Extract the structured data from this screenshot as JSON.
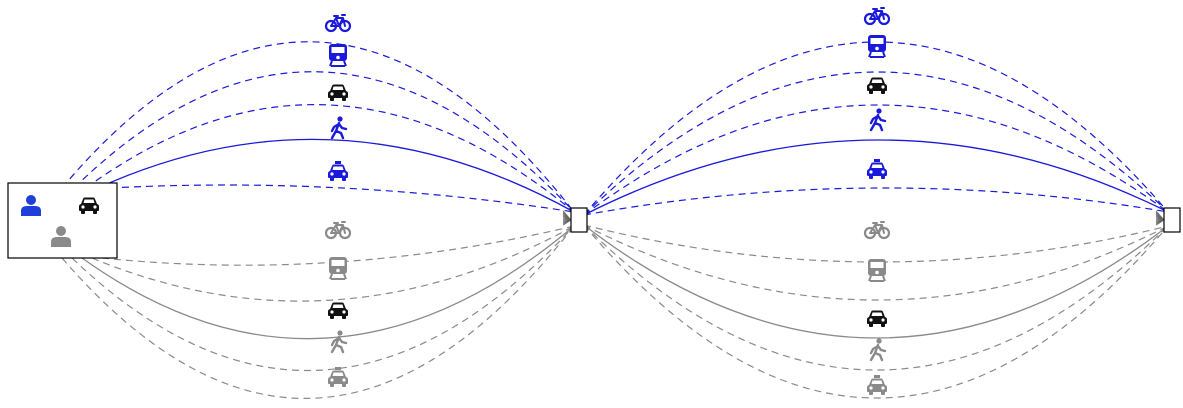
{
  "colors": {
    "blue": "#1a1adb",
    "gray": "#8a8a8a",
    "black": "#111111",
    "person_blue": "#1f3fd8",
    "person_gray": "#8a8a8a",
    "box_border": "#000000"
  },
  "diagram": {
    "origin": {
      "icons": [
        "person-icon",
        "car-icon",
        "person-icon"
      ]
    },
    "stops": [
      "stop-node",
      "stop-node"
    ],
    "segments": [
      {
        "upper_routes": [
          {
            "mode": "bike",
            "icon": "bike-icon",
            "color": "blue",
            "line": "dashed"
          },
          {
            "mode": "train",
            "icon": "train-icon",
            "color": "blue",
            "line": "dashed"
          },
          {
            "mode": "car",
            "icon": "car-icon",
            "color": "black",
            "line": "dashed"
          },
          {
            "mode": "walk",
            "icon": "walk-icon",
            "color": "blue",
            "line": "solid"
          },
          {
            "mode": "taxi",
            "icon": "taxi-icon",
            "color": "blue",
            "line": "dashed"
          }
        ],
        "lower_routes": [
          {
            "mode": "bike",
            "icon": "bike-icon",
            "color": "gray",
            "line": "dashed"
          },
          {
            "mode": "train",
            "icon": "train-icon",
            "color": "gray",
            "line": "dashed"
          },
          {
            "mode": "car",
            "icon": "car-icon",
            "color": "black",
            "line": "solid"
          },
          {
            "mode": "walk",
            "icon": "walk-icon",
            "color": "gray",
            "line": "dashed"
          },
          {
            "mode": "taxi",
            "icon": "taxi-icon",
            "color": "gray",
            "line": "dashed"
          }
        ]
      },
      {
        "upper_routes": [
          {
            "mode": "bike",
            "icon": "bike-icon",
            "color": "blue",
            "line": "dashed"
          },
          {
            "mode": "train",
            "icon": "train-icon",
            "color": "blue",
            "line": "dashed"
          },
          {
            "mode": "car",
            "icon": "car-icon",
            "color": "black",
            "line": "dashed"
          },
          {
            "mode": "walk",
            "icon": "walk-icon",
            "color": "blue",
            "line": "solid"
          },
          {
            "mode": "taxi",
            "icon": "taxi-icon",
            "color": "blue",
            "line": "dashed"
          }
        ],
        "lower_routes": [
          {
            "mode": "bike",
            "icon": "bike-icon",
            "color": "gray",
            "line": "dashed"
          },
          {
            "mode": "train",
            "icon": "train-icon",
            "color": "gray",
            "line": "dashed"
          },
          {
            "mode": "car",
            "icon": "car-icon",
            "color": "black",
            "line": "solid"
          },
          {
            "mode": "walk",
            "icon": "walk-icon",
            "color": "gray",
            "line": "dashed"
          },
          {
            "mode": "taxi",
            "icon": "taxi-icon",
            "color": "gray",
            "line": "dashed"
          }
        ]
      }
    ]
  }
}
